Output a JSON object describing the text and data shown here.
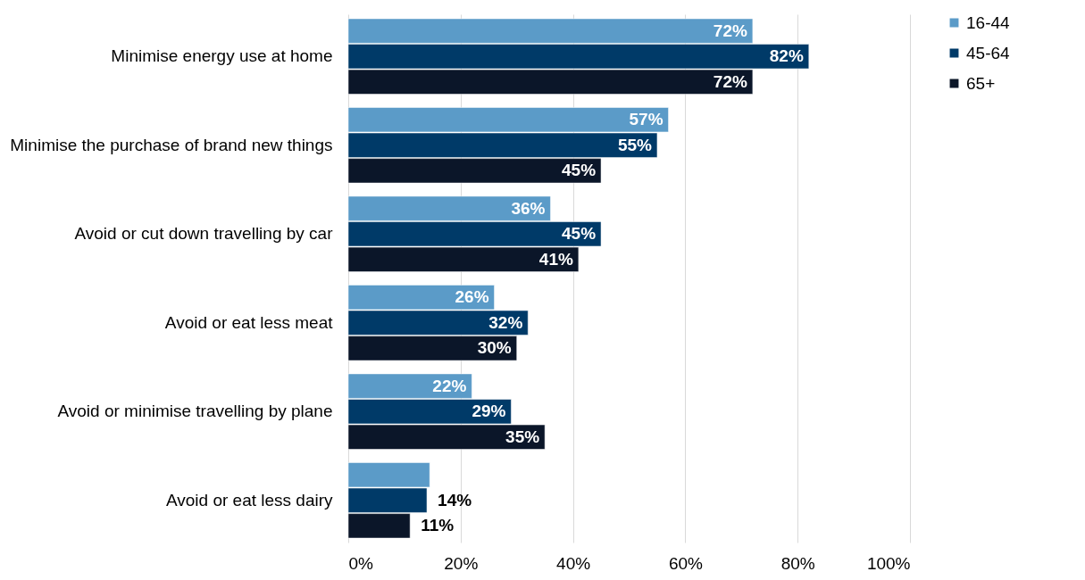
{
  "chart_data": {
    "type": "bar",
    "orientation": "horizontal",
    "categories": [
      "Minimise energy use at home",
      "Minimise the purchase of brand new things",
      "Avoid or cut down travelling by car",
      "Avoid or eat less meat",
      "Avoid or minimise travelling by plane",
      "Avoid or eat less dairy"
    ],
    "series": [
      {
        "name": "16-44",
        "color": "#5b9bc8",
        "values": [
          72,
          57,
          36,
          26,
          22,
          14.5
        ],
        "value_labels": [
          "72%",
          "57%",
          "36%",
          "26%",
          "22%",
          null
        ]
      },
      {
        "name": "45-64",
        "color": "#003a68",
        "values": [
          82,
          55,
          45,
          32,
          29,
          14
        ],
        "value_labels": [
          "82%",
          "55%",
          "45%",
          "32%",
          "29%",
          "14%"
        ]
      },
      {
        "name": "65+",
        "color": "#0b1629",
        "values": [
          72,
          45,
          41,
          30,
          35,
          11
        ],
        "value_labels": [
          "72%",
          "45%",
          "41%",
          "30%",
          "35%",
          "11%"
        ]
      }
    ],
    "xlim": [
      0,
      100
    ],
    "xticks": [
      {
        "value": 0,
        "label": "0%"
      },
      {
        "value": 20,
        "label": "20%"
      },
      {
        "value": 40,
        "label": "40%"
      },
      {
        "value": 60,
        "label": "60%"
      },
      {
        "value": 80,
        "label": "80%"
      },
      {
        "value": 100,
        "label": "100%"
      }
    ],
    "grid": "x",
    "legend": "right"
  }
}
